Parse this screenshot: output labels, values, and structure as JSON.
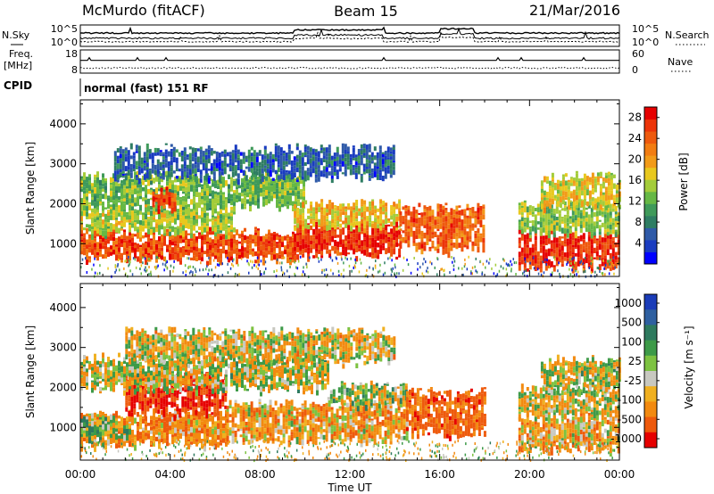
{
  "header": {
    "station": "McMurdo (fitACF)",
    "beam": "Beam 15",
    "date": "21/Mar/2016"
  },
  "strips": {
    "nsky_label": "N.Sky",
    "nsearch_label": "N.Search",
    "freq_label": "Freq.",
    "freq_unit": "[MHz]",
    "nave_label": "Nave",
    "cpid_label": "CPID",
    "cpid_value": "normal (fast) 151 RF",
    "noise_ticks": [
      "10^5",
      "10^0"
    ],
    "freq_ticks": [
      "18",
      "8"
    ],
    "nave_ticks": [
      "60",
      "0"
    ]
  },
  "chart_data": [
    {
      "type": "heatmap",
      "panel": "power",
      "xlabel": "",
      "ylabel": "Slant Range [km]",
      "x_ticks": [
        "00:00",
        "04:00",
        "08:00",
        "12:00",
        "16:00",
        "20:00",
        "00:00"
      ],
      "xlim_hours": [
        0,
        24
      ],
      "y_ticks": [
        1000,
        2000,
        3000,
        4000
      ],
      "ylim": [
        180,
        4600
      ],
      "colorbar": {
        "label": "Power [dB]",
        "ticks": [
          4,
          8,
          12,
          16,
          20,
          24,
          28
        ],
        "range": [
          0,
          30
        ],
        "colors": [
          "#0000ff",
          "#1a3cc0",
          "#2f5aa8",
          "#2e7d63",
          "#3f9a5a",
          "#66b845",
          "#a4cc3a",
          "#e8c81e",
          "#f29b19",
          "#f27d12",
          "#ee5a0e",
          "#ec3409",
          "#e60000"
        ]
      },
      "bands": [
        {
          "t0": 0.0,
          "t1": 9.5,
          "r0": 650,
          "r1": 1300,
          "value": 25
        },
        {
          "t0": 0.0,
          "t1": 6.8,
          "r0": 1300,
          "r1": 1900,
          "value": 15
        },
        {
          "t0": 0.0,
          "t1": 10.0,
          "r0": 1950,
          "r1": 2700,
          "value": 13
        },
        {
          "t0": 9.5,
          "t1": 14.2,
          "r0": 750,
          "r1": 1450,
          "value": 27
        },
        {
          "t0": 9.5,
          "t1": 14.2,
          "r0": 1450,
          "r1": 2000,
          "value": 18
        },
        {
          "t0": 14.2,
          "t1": 18.0,
          "r0": 900,
          "r1": 1900,
          "value": 24
        },
        {
          "t0": 19.5,
          "t1": 24.0,
          "r0": 450,
          "r1": 1250,
          "value": 27
        },
        {
          "t0": 19.5,
          "t1": 24.0,
          "r0": 1300,
          "r1": 2000,
          "value": 14
        },
        {
          "t0": 20.5,
          "t1": 24.0,
          "r0": 2000,
          "r1": 2700,
          "value": 17
        },
        {
          "t0": 1.5,
          "t1": 14.0,
          "r0": 2700,
          "r1": 3400,
          "value": 6
        },
        {
          "t0": 3.2,
          "t1": 4.2,
          "r0": 1900,
          "r1": 2300,
          "value": 26
        }
      ]
    },
    {
      "type": "heatmap",
      "panel": "velocity",
      "xlabel": "Time UT",
      "ylabel": "Slant Range [km]",
      "x_ticks": [
        "00:00",
        "04:00",
        "08:00",
        "12:00",
        "16:00",
        "20:00",
        "00:00"
      ],
      "xlim_hours": [
        0,
        24
      ],
      "y_ticks": [
        1000,
        2000,
        3000,
        4000
      ],
      "ylim": [
        180,
        4600
      ],
      "colorbar": {
        "label": "Velocity [m s⁻¹]",
        "tick_labels": [
          "1000",
          "500",
          "100",
          "25",
          "-25",
          "-100",
          "-500",
          "-1000"
        ],
        "colors": [
          "#1a3cb8",
          "#2f60a0",
          "#2e7a5e",
          "#3d9a48",
          "#7dc241",
          "#c8c8c0",
          "#f0b020",
          "#f28a10",
          "#ee5a0c",
          "#e60000"
        ]
      },
      "bands": [
        {
          "t0": 0.0,
          "t1": 6.5,
          "r0": 600,
          "r1": 1350,
          "value": -200
        },
        {
          "t0": 0.0,
          "t1": 2.2,
          "r0": 700,
          "r1": 1200,
          "value": 80
        },
        {
          "t0": 2.0,
          "t1": 6.5,
          "r0": 1400,
          "r1": 2300,
          "value": -600
        },
        {
          "t0": 0.0,
          "t1": 11.0,
          "r0": 2000,
          "r1": 2750,
          "value": 0
        },
        {
          "t0": 6.5,
          "t1": 14.5,
          "r0": 700,
          "r1": 1600,
          "value": -150
        },
        {
          "t0": 11.0,
          "t1": 14.5,
          "r0": 1600,
          "r1": 2050,
          "value": 60
        },
        {
          "t0": 14.5,
          "t1": 18.0,
          "r0": 850,
          "r1": 1900,
          "value": -400
        },
        {
          "t0": 19.5,
          "t1": 24.0,
          "r0": 450,
          "r1": 1250,
          "value": -150
        },
        {
          "t0": 19.5,
          "t1": 24.0,
          "r0": 1300,
          "r1": 2000,
          "value": -30
        },
        {
          "t0": 20.5,
          "t1": 24.0,
          "r0": 2000,
          "r1": 2700,
          "value": 10
        },
        {
          "t0": 2.0,
          "t1": 14.0,
          "r0": 2700,
          "r1": 3400,
          "value": -50
        }
      ]
    }
  ]
}
